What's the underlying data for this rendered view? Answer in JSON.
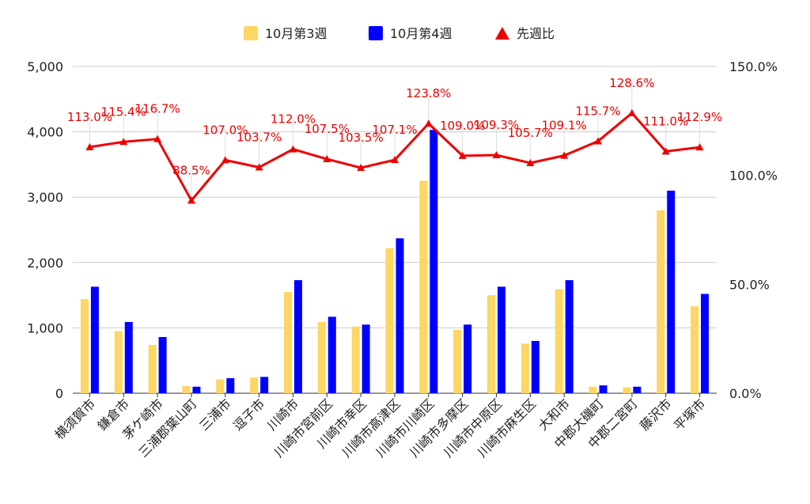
{
  "chart_data": {
    "type": "bar",
    "categories": [
      "横須賀市",
      "鎌倉市",
      "茅ケ崎市",
      "三浦郡葉山町",
      "三浦市",
      "逗子市",
      "川崎市",
      "川崎市宮前区",
      "川崎市幸区",
      "川崎市高津区",
      "川崎市川崎区",
      "川崎市多摩区",
      "川崎市中原区",
      "川崎市麻生区",
      "大和市",
      "中郡大磯町",
      "中郡二宮町",
      "藤沢市",
      "平塚市"
    ],
    "series": [
      {
        "name": "10月第3週",
        "type": "bar",
        "axis": "left",
        "color": "#FDD663",
        "values": [
          1440,
          950,
          740,
          110,
          210,
          240,
          1550,
          1090,
          1020,
          2220,
          3250,
          970,
          1500,
          760,
          1590,
          100,
          90,
          2800,
          1330
        ]
      },
      {
        "name": "10月第4週",
        "type": "bar",
        "axis": "left",
        "color": "#0000FF",
        "values": [
          1630,
          1090,
          860,
          100,
          230,
          250,
          1730,
          1170,
          1050,
          2370,
          4030,
          1050,
          1630,
          800,
          1730,
          120,
          100,
          3100,
          1520
        ]
      },
      {
        "name": "先週比",
        "type": "line",
        "axis": "right",
        "color": "#EE0000",
        "values": [
          113.0,
          115.4,
          116.7,
          88.5,
          107.0,
          103.7,
          112.0,
          107.5,
          103.5,
          107.1,
          123.8,
          109.0,
          109.3,
          105.7,
          109.1,
          115.7,
          128.6,
          111.0,
          112.9
        ],
        "labels": [
          "113.0%",
          "115.4%",
          "116.7%",
          "88.5%",
          "107.0%",
          "103.7%",
          "112.0%",
          "107.5%",
          "103.5%",
          "107.1%",
          "123.8%",
          "109.0%",
          "109.3%",
          "105.7%",
          "109.1%",
          "115.7%",
          "128.6%",
          "111.0%",
          "112.9%"
        ]
      }
    ],
    "left_axis": {
      "min": 0,
      "max": 5000,
      "ticks": [
        "0",
        "1,000",
        "2,000",
        "3,000",
        "4,000",
        "5,000"
      ]
    },
    "right_axis": {
      "min": 0,
      "max": 150,
      "ticks": [
        "0.0%",
        "50.0%",
        "100.0%",
        "150.0%"
      ]
    },
    "grid": true,
    "legend_position": "top"
  }
}
